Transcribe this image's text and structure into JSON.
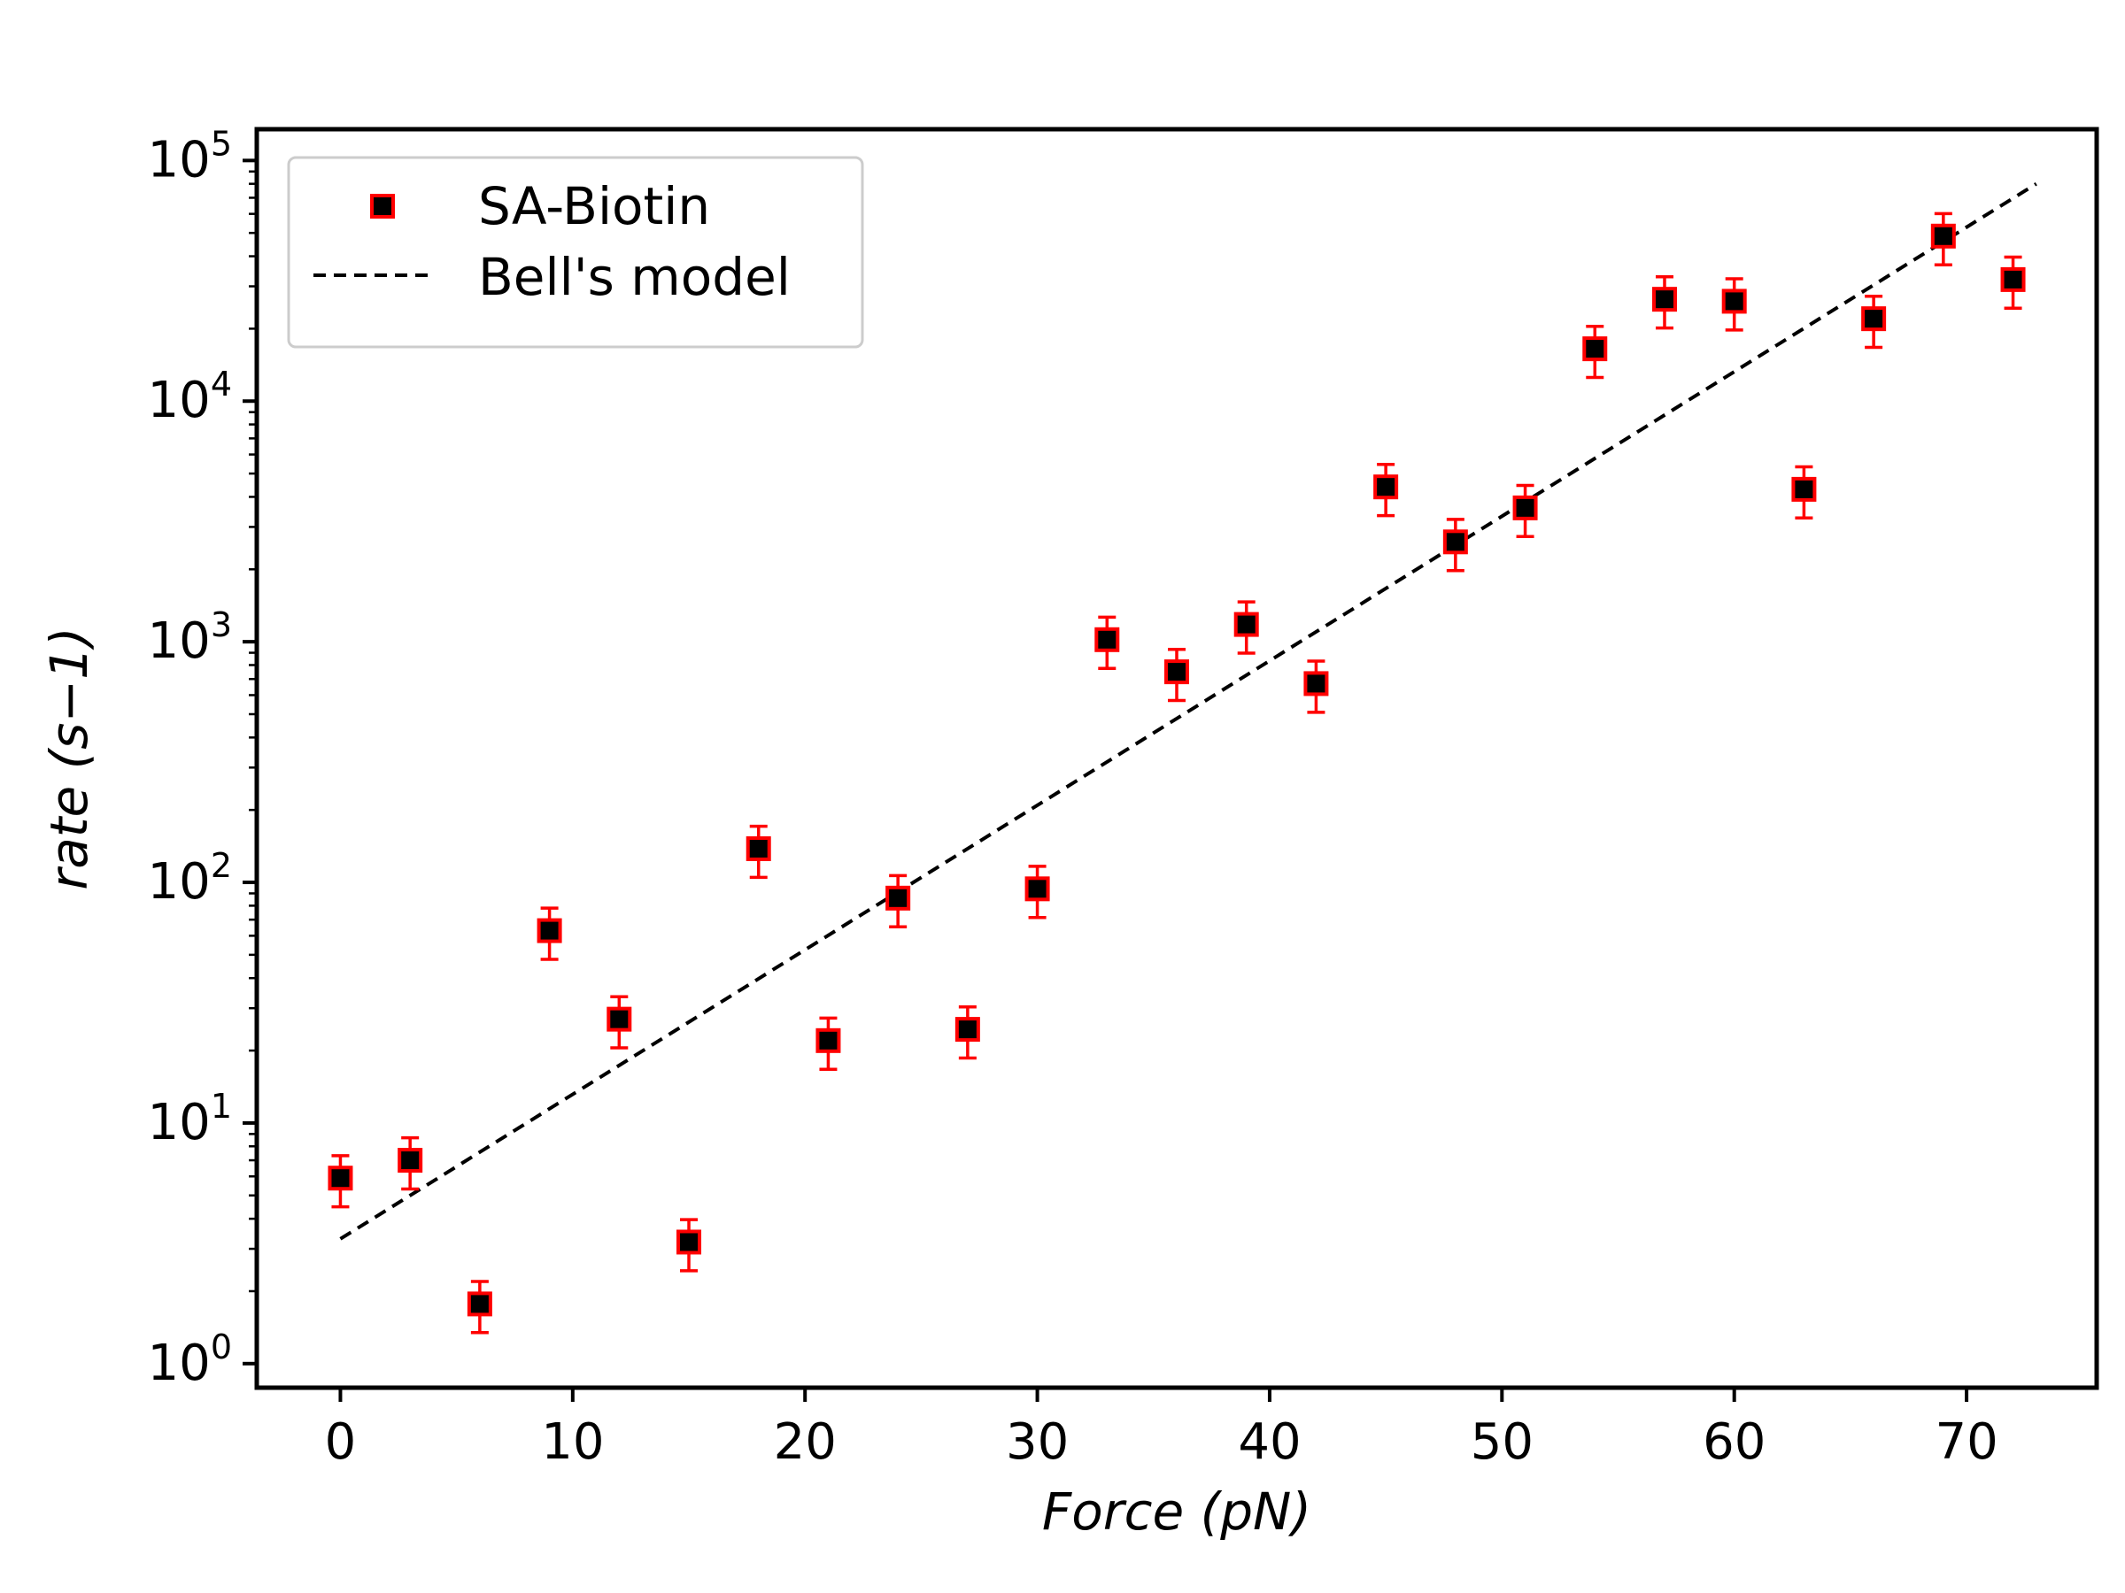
{
  "chart_data": {
    "type": "scatter",
    "xlabel": "Force (pN)",
    "ylabel": "rate (s−1)",
    "xlim": [
      -3.6,
      75.6
    ],
    "ylim_log10": [
      -0.1,
      5.13
    ],
    "y_scale": "log",
    "grid": false,
    "legend_position": "upper-left",
    "x_ticks": [
      0,
      10,
      20,
      30,
      40,
      50,
      60,
      70
    ],
    "y_ticks": [
      {
        "value": 1,
        "base": "10",
        "exp": "0"
      },
      {
        "value": 10,
        "base": "10",
        "exp": "1"
      },
      {
        "value": 100,
        "base": "10",
        "exp": "2"
      },
      {
        "value": 1000,
        "base": "10",
        "exp": "3"
      },
      {
        "value": 10000,
        "base": "10",
        "exp": "4"
      },
      {
        "value": 100000,
        "base": "10",
        "exp": "5"
      }
    ],
    "series": [
      {
        "name": "SA-Biotin",
        "kind": "scatter-errorbar",
        "marker_face": "#000000",
        "marker_edge": "#ff0000",
        "error_color": "#ff0000",
        "relative_error": 0.24,
        "x": [
          0,
          3,
          6,
          9,
          12,
          15,
          18,
          21,
          24,
          27,
          30,
          33,
          36,
          39,
          42,
          45,
          48,
          51,
          54,
          57,
          60,
          63,
          66,
          69,
          72
        ],
        "y": [
          5.9,
          7.0,
          1.77,
          63,
          27,
          3.2,
          138,
          22,
          86,
          24.5,
          94,
          1020,
          750,
          1180,
          670,
          4400,
          2600,
          3600,
          16500,
          26500,
          26000,
          4300,
          22000,
          48500,
          32000
        ]
      },
      {
        "name": "Bell's model",
        "kind": "line",
        "color": "#000000",
        "dash": "dashed",
        "x": [
          0,
          73
        ],
        "y": [
          3.3,
          80000
        ]
      }
    ]
  }
}
